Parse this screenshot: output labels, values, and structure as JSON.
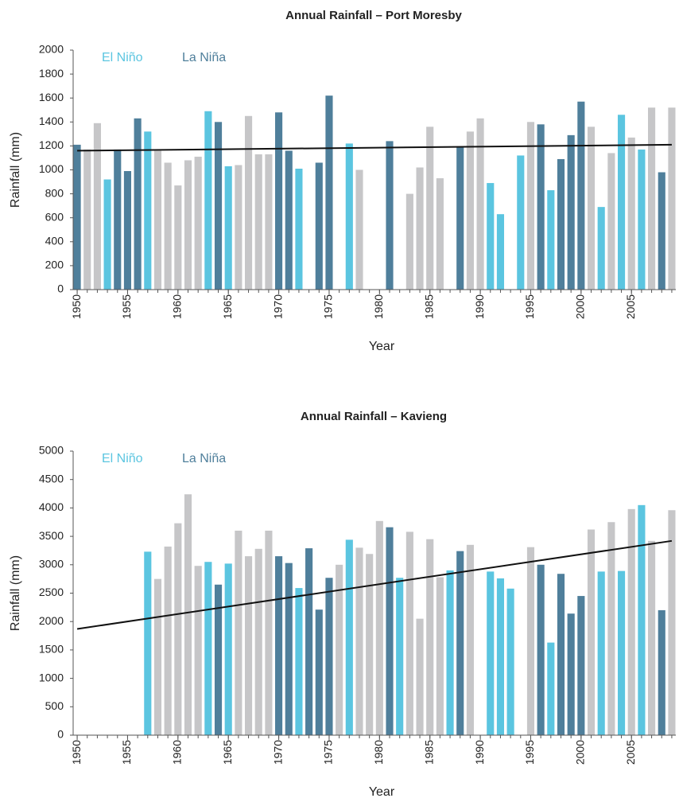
{
  "chart_data": [
    {
      "type": "bar",
      "title": "Annual Rainfall – Port Moresby",
      "x_label": "Year",
      "y_label": "Rainfall (mm)",
      "x": [
        1950,
        1951,
        1952,
        1953,
        1954,
        1955,
        1956,
        1957,
        1958,
        1959,
        1960,
        1961,
        1962,
        1963,
        1964,
        1965,
        1966,
        1967,
        1968,
        1969,
        1970,
        1971,
        1972,
        1973,
        1974,
        1975,
        1976,
        1977,
        1978,
        1979,
        1980,
        1981,
        1982,
        1983,
        1984,
        1985,
        1986,
        1987,
        1988,
        1989,
        1990,
        1991,
        1992,
        1993,
        1994,
        1995,
        1996,
        1997,
        1998,
        1999,
        2000,
        2001,
        2002,
        2003,
        2004,
        2005,
        2006,
        2007,
        2008,
        2009
      ],
      "values": [
        1210,
        1170,
        1390,
        920,
        1170,
        990,
        1430,
        1320,
        1160,
        1060,
        870,
        1080,
        1110,
        1490,
        1400,
        1030,
        1040,
        1450,
        1130,
        1130,
        1480,
        1160,
        1010,
        null,
        1060,
        1620,
        null,
        1220,
        1000,
        null,
        null,
        1240,
        null,
        800,
        1020,
        1360,
        930,
        null,
        1190,
        1320,
        1430,
        890,
        630,
        null,
        1120,
        1400,
        1380,
        830,
        1090,
        1290,
        1570,
        1360,
        690,
        1140,
        1460,
        1270,
        1170,
        1520,
        980,
        1520
      ],
      "colors": [
        "#4f7f9b",
        "#c6c6c8",
        "#c6c6c8",
        "#5bc5e0",
        "#4f7f9b",
        "#4f7f9b",
        "#4f7f9b",
        "#5bc5e0",
        "#c6c6c8",
        "#c6c6c8",
        "#c6c6c8",
        "#c6c6c8",
        "#c6c6c8",
        "#5bc5e0",
        "#4f7f9b",
        "#5bc5e0",
        "#c6c6c8",
        "#c6c6c8",
        "#c6c6c8",
        "#c6c6c8",
        "#4f7f9b",
        "#4f7f9b",
        "#5bc5e0",
        null,
        "#4f7f9b",
        "#4f7f9b",
        null,
        "#5bc5e0",
        "#c6c6c8",
        null,
        null,
        "#4f7f9b",
        null,
        "#c6c6c8",
        "#c6c6c8",
        "#c6c6c8",
        "#c6c6c8",
        null,
        "#4f7f9b",
        "#c6c6c8",
        "#c6c6c8",
        "#5bc5e0",
        "#5bc5e0",
        null,
        "#5bc5e0",
        "#c6c6c8",
        "#4f7f9b",
        "#5bc5e0",
        "#4f7f9b",
        "#4f7f9b",
        "#4f7f9b",
        "#c6c6c8",
        "#5bc5e0",
        "#c6c6c8",
        "#5bc5e0",
        "#c6c6c8",
        "#5bc5e0",
        "#c6c6c8",
        "#4f7f9b",
        "#c6c6c8"
      ],
      "legend": [
        {
          "name": "El Niño",
          "color": "#5bc5e0"
        },
        {
          "name": "La Niña",
          "color": "#4f7f9b"
        }
      ],
      "trend": {
        "x": [
          1950,
          2009
        ],
        "values": [
          1160,
          1210
        ],
        "color": "#111111"
      },
      "xlim": [
        1949.6,
        2009.4
      ],
      "ylim": [
        0,
        2000
      ],
      "xticks": [
        1950,
        1955,
        1960,
        1965,
        1970,
        1975,
        1980,
        1985,
        1990,
        1995,
        2000,
        2005
      ],
      "yticks": [
        0,
        200,
        400,
        600,
        800,
        1000,
        1200,
        1400,
        1600,
        1800,
        2000
      ],
      "grid": false
    },
    {
      "type": "bar",
      "title": "Annual Rainfall – Kavieng",
      "x_label": "Year",
      "y_label": "Rainfall (mm)",
      "x": [
        1950,
        1951,
        1952,
        1953,
        1954,
        1955,
        1956,
        1957,
        1958,
        1959,
        1960,
        1961,
        1962,
        1963,
        1964,
        1965,
        1966,
        1967,
        1968,
        1969,
        1970,
        1971,
        1972,
        1973,
        1974,
        1975,
        1976,
        1977,
        1978,
        1979,
        1980,
        1981,
        1982,
        1983,
        1984,
        1985,
        1986,
        1987,
        1988,
        1989,
        1990,
        1991,
        1992,
        1993,
        1994,
        1995,
        1996,
        1997,
        1998,
        1999,
        2000,
        2001,
        2002,
        2003,
        2004,
        2005,
        2006,
        2007,
        2008,
        2009
      ],
      "values": [
        null,
        null,
        null,
        null,
        null,
        null,
        null,
        3230,
        2750,
        3320,
        3730,
        4240,
        2980,
        3050,
        2650,
        3020,
        3600,
        3150,
        3280,
        3600,
        3150,
        3030,
        2590,
        3290,
        2210,
        2770,
        3000,
        3440,
        3300,
        3190,
        3770,
        3660,
        2770,
        3580,
        2050,
        3450,
        2780,
        2900,
        3240,
        3350,
        null,
        2880,
        2760,
        2580,
        null,
        3310,
        3000,
        1630,
        2840,
        2140,
        2450,
        3620,
        2880,
        3750,
        2890,
        3980,
        4050,
        3420,
        2200,
        3960
      ],
      "colors": [
        null,
        null,
        null,
        null,
        null,
        null,
        null,
        "#5bc5e0",
        "#c6c6c8",
        "#c6c6c8",
        "#c6c6c8",
        "#c6c6c8",
        "#c6c6c8",
        "#5bc5e0",
        "#4f7f9b",
        "#5bc5e0",
        "#c6c6c8",
        "#c6c6c8",
        "#c6c6c8",
        "#c6c6c8",
        "#4f7f9b",
        "#4f7f9b",
        "#5bc5e0",
        "#4f7f9b",
        "#4f7f9b",
        "#4f7f9b",
        "#c6c6c8",
        "#5bc5e0",
        "#c6c6c8",
        "#c6c6c8",
        "#c6c6c8",
        "#4f7f9b",
        "#5bc5e0",
        "#c6c6c8",
        "#c6c6c8",
        "#c6c6c8",
        "#c6c6c8",
        "#5bc5e0",
        "#4f7f9b",
        "#c6c6c8",
        null,
        "#5bc5e0",
        "#5bc5e0",
        "#5bc5e0",
        null,
        "#c6c6c8",
        "#4f7f9b",
        "#5bc5e0",
        "#4f7f9b",
        "#4f7f9b",
        "#4f7f9b",
        "#c6c6c8",
        "#5bc5e0",
        "#c6c6c8",
        "#5bc5e0",
        "#c6c6c8",
        "#5bc5e0",
        "#c6c6c8",
        "#4f7f9b",
        "#c6c6c8"
      ],
      "legend": [
        {
          "name": "El Niño",
          "color": "#5bc5e0"
        },
        {
          "name": "La Niña",
          "color": "#4f7f9b"
        }
      ],
      "trend": {
        "x": [
          1950,
          2009
        ],
        "values": [
          1870,
          3420
        ],
        "color": "#111111"
      },
      "xlim": [
        1949.6,
        2009.4
      ],
      "ylim": [
        0,
        5000
      ],
      "xticks": [
        1950,
        1955,
        1960,
        1965,
        1970,
        1975,
        1980,
        1985,
        1990,
        1995,
        2000,
        2005
      ],
      "yticks": [
        0,
        500,
        1000,
        1500,
        2000,
        2500,
        3000,
        3500,
        4000,
        4500,
        5000
      ],
      "grid": false
    }
  ]
}
